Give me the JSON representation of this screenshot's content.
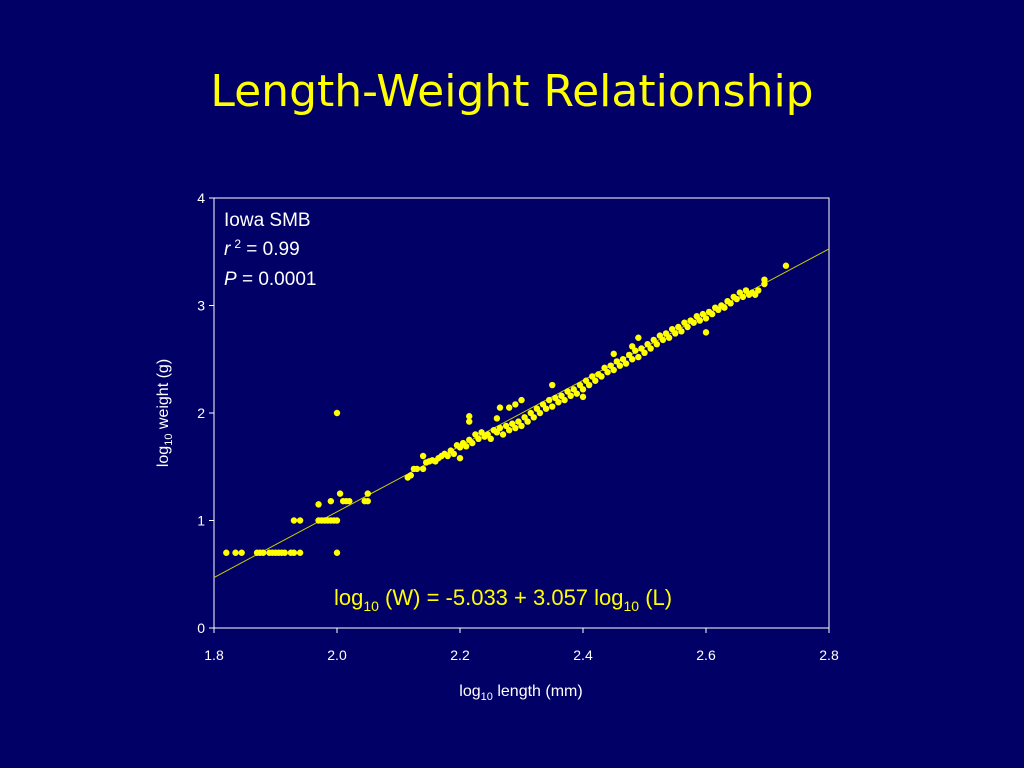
{
  "slide": {
    "title": "Length-Weight Relationship"
  },
  "chart_data": {
    "type": "scatter",
    "title": "",
    "xlabel_base": "log",
    "xlabel_sub": "10",
    "xlabel_rest": " length (mm)",
    "ylabel_base": "log",
    "ylabel_sub": "10",
    "ylabel_rest": " weight (g)",
    "xlim": [
      1.8,
      2.8
    ],
    "ylim": [
      0,
      4
    ],
    "xticks": [
      "1.8",
      "2.0",
      "2.2",
      "2.4",
      "2.6",
      "2.8"
    ],
    "yticks": [
      "0",
      "1",
      "2",
      "3",
      "4"
    ],
    "grid": false,
    "colors": {
      "background": "#000066",
      "points": "#ffff00",
      "line": "#cccc00",
      "frame": "#ffffff"
    },
    "annotation": {
      "species": "Iowa SMB",
      "r_symbol": "r",
      "r_sup": "2",
      "r_value": " = 0.99",
      "p_symbol": "P",
      "p_value": " = 0.0001"
    },
    "equation": {
      "part1": "log",
      "sub1": "10",
      "part2": " (W) = -5.033 + 3.057 log",
      "sub2": "10",
      "part3": " (L)"
    },
    "regression": {
      "intercept": -5.033,
      "slope": 3.057
    },
    "points": [
      [
        1.82,
        0.7
      ],
      [
        1.835,
        0.7
      ],
      [
        1.845,
        0.7
      ],
      [
        1.87,
        0.7
      ],
      [
        1.875,
        0.7
      ],
      [
        1.88,
        0.7
      ],
      [
        1.89,
        0.7
      ],
      [
        1.895,
        0.7
      ],
      [
        1.9,
        0.7
      ],
      [
        1.905,
        0.7
      ],
      [
        1.91,
        0.7
      ],
      [
        1.915,
        0.7
      ],
      [
        1.925,
        0.7
      ],
      [
        1.93,
        0.7
      ],
      [
        1.94,
        0.7
      ],
      [
        2.0,
        0.7
      ],
      [
        1.93,
        1.0
      ],
      [
        1.94,
        1.0
      ],
      [
        1.97,
        1.0
      ],
      [
        1.975,
        1.0
      ],
      [
        1.98,
        1.0
      ],
      [
        1.985,
        1.0
      ],
      [
        1.99,
        1.0
      ],
      [
        1.995,
        1.0
      ],
      [
        2.0,
        1.0
      ],
      [
        1.97,
        1.15
      ],
      [
        1.99,
        1.18
      ],
      [
        2.0,
        2.0
      ],
      [
        2.005,
        1.25
      ],
      [
        2.01,
        1.18
      ],
      [
        2.015,
        1.18
      ],
      [
        2.02,
        1.18
      ],
      [
        2.045,
        1.18
      ],
      [
        2.05,
        1.18
      ],
      [
        2.05,
        1.25
      ],
      [
        2.115,
        1.4
      ],
      [
        2.12,
        1.42
      ],
      [
        2.125,
        1.48
      ],
      [
        2.13,
        1.48
      ],
      [
        2.14,
        1.48
      ],
      [
        2.14,
        1.6
      ],
      [
        2.145,
        1.54
      ],
      [
        2.15,
        1.55
      ],
      [
        2.155,
        1.56
      ],
      [
        2.16,
        1.55
      ],
      [
        2.165,
        1.58
      ],
      [
        2.17,
        1.6
      ],
      [
        2.175,
        1.62
      ],
      [
        2.18,
        1.6
      ],
      [
        2.185,
        1.65
      ],
      [
        2.19,
        1.62
      ],
      [
        2.195,
        1.7
      ],
      [
        2.2,
        1.68
      ],
      [
        2.2,
        1.58
      ],
      [
        2.205,
        1.72
      ],
      [
        2.21,
        1.69
      ],
      [
        2.215,
        1.75
      ],
      [
        2.215,
        1.92
      ],
      [
        2.215,
        1.97
      ],
      [
        2.22,
        1.72
      ],
      [
        2.225,
        1.8
      ],
      [
        2.23,
        1.76
      ],
      [
        2.235,
        1.82
      ],
      [
        2.24,
        1.78
      ],
      [
        2.245,
        1.8
      ],
      [
        2.25,
        1.76
      ],
      [
        2.255,
        1.84
      ],
      [
        2.26,
        1.82
      ],
      [
        2.26,
        1.95
      ],
      [
        2.265,
        1.86
      ],
      [
        2.265,
        2.05
      ],
      [
        2.27,
        1.8
      ],
      [
        2.275,
        1.88
      ],
      [
        2.28,
        1.84
      ],
      [
        2.28,
        2.05
      ],
      [
        2.285,
        1.9
      ],
      [
        2.29,
        1.86
      ],
      [
        2.29,
        2.08
      ],
      [
        2.295,
        1.92
      ],
      [
        2.3,
        1.88
      ],
      [
        2.3,
        2.12
      ],
      [
        2.305,
        1.96
      ],
      [
        2.31,
        1.92
      ],
      [
        2.315,
        2.0
      ],
      [
        2.32,
        1.96
      ],
      [
        2.325,
        2.04
      ],
      [
        2.33,
        2.0
      ],
      [
        2.335,
        2.08
      ],
      [
        2.34,
        2.04
      ],
      [
        2.345,
        2.12
      ],
      [
        2.35,
        2.06
      ],
      [
        2.35,
        2.26
      ],
      [
        2.355,
        2.14
      ],
      [
        2.36,
        2.1
      ],
      [
        2.365,
        2.16
      ],
      [
        2.37,
        2.12
      ],
      [
        2.375,
        2.2
      ],
      [
        2.38,
        2.16
      ],
      [
        2.385,
        2.22
      ],
      [
        2.39,
        2.18
      ],
      [
        2.395,
        2.26
      ],
      [
        2.4,
        2.22
      ],
      [
        2.4,
        2.15
      ],
      [
        2.405,
        2.3
      ],
      [
        2.41,
        2.26
      ],
      [
        2.415,
        2.34
      ],
      [
        2.42,
        2.3
      ],
      [
        2.425,
        2.36
      ],
      [
        2.43,
        2.34
      ],
      [
        2.435,
        2.42
      ],
      [
        2.44,
        2.38
      ],
      [
        2.445,
        2.44
      ],
      [
        2.45,
        2.4
      ],
      [
        2.45,
        2.55
      ],
      [
        2.455,
        2.48
      ],
      [
        2.46,
        2.44
      ],
      [
        2.465,
        2.5
      ],
      [
        2.47,
        2.46
      ],
      [
        2.475,
        2.54
      ],
      [
        2.48,
        2.5
      ],
      [
        2.48,
        2.62
      ],
      [
        2.485,
        2.58
      ],
      [
        2.49,
        2.52
      ],
      [
        2.49,
        2.7
      ],
      [
        2.495,
        2.6
      ],
      [
        2.5,
        2.56
      ],
      [
        2.505,
        2.64
      ],
      [
        2.51,
        2.6
      ],
      [
        2.515,
        2.68
      ],
      [
        2.52,
        2.64
      ],
      [
        2.525,
        2.72
      ],
      [
        2.53,
        2.68
      ],
      [
        2.535,
        2.74
      ],
      [
        2.54,
        2.7
      ],
      [
        2.545,
        2.78
      ],
      [
        2.55,
        2.74
      ],
      [
        2.555,
        2.8
      ],
      [
        2.56,
        2.76
      ],
      [
        2.565,
        2.84
      ],
      [
        2.57,
        2.8
      ],
      [
        2.575,
        2.86
      ],
      [
        2.58,
        2.84
      ],
      [
        2.585,
        2.9
      ],
      [
        2.59,
        2.86
      ],
      [
        2.595,
        2.92
      ],
      [
        2.6,
        2.88
      ],
      [
        2.6,
        2.75
      ],
      [
        2.605,
        2.94
      ],
      [
        2.61,
        2.92
      ],
      [
        2.615,
        2.98
      ],
      [
        2.62,
        2.96
      ],
      [
        2.625,
        3.0
      ],
      [
        2.63,
        2.98
      ],
      [
        2.635,
        3.04
      ],
      [
        2.64,
        3.02
      ],
      [
        2.645,
        3.08
      ],
      [
        2.65,
        3.06
      ],
      [
        2.655,
        3.12
      ],
      [
        2.66,
        3.08
      ],
      [
        2.665,
        3.14
      ],
      [
        2.67,
        3.1
      ],
      [
        2.675,
        3.12
      ],
      [
        2.68,
        3.1
      ],
      [
        2.685,
        3.14
      ],
      [
        2.695,
        3.2
      ],
      [
        2.695,
        3.24
      ],
      [
        2.73,
        3.37
      ]
    ]
  }
}
